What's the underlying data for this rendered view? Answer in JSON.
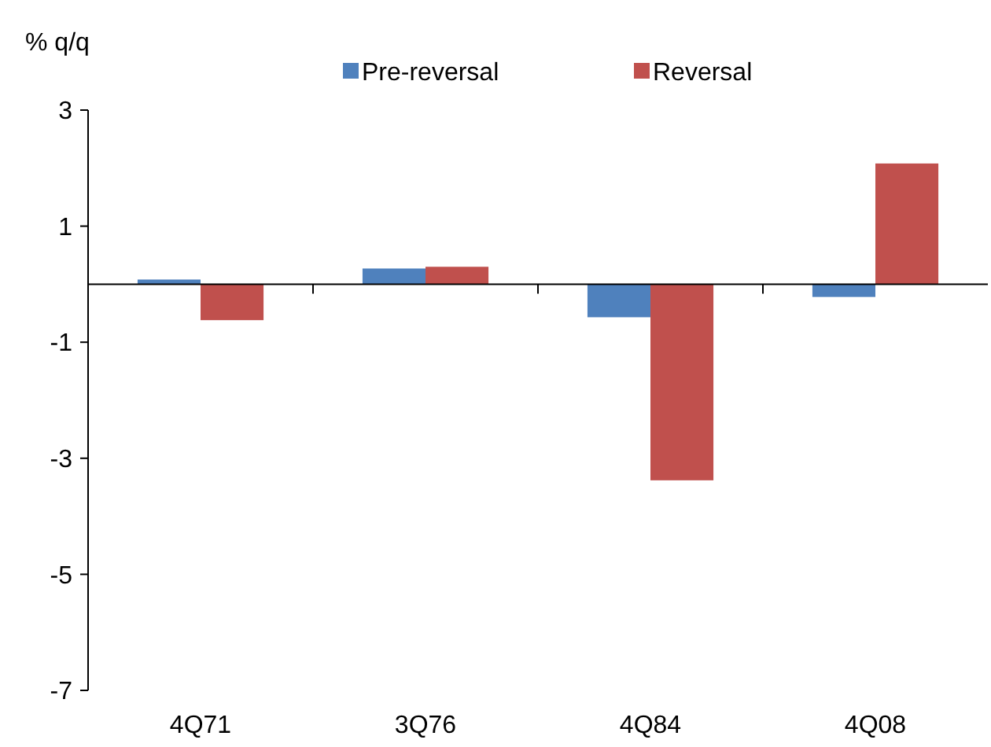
{
  "chart_data": {
    "type": "bar",
    "ylabel": "% q/q",
    "categories": [
      "4Q71",
      "3Q76",
      "4Q84",
      "4Q08"
    ],
    "series": [
      {
        "name": "Pre-reversal",
        "color": "#4f81bd",
        "values": [
          0.08,
          0.27,
          -0.57,
          -0.22
        ]
      },
      {
        "name": "Reversal",
        "color": "#c0504d",
        "values": [
          -0.62,
          0.3,
          -3.38,
          2.08
        ]
      }
    ],
    "ylim": [
      -7,
      3
    ],
    "yticks": [
      -7,
      -5,
      -3,
      -1,
      1,
      3
    ],
    "grid": false,
    "legend": "top"
  }
}
